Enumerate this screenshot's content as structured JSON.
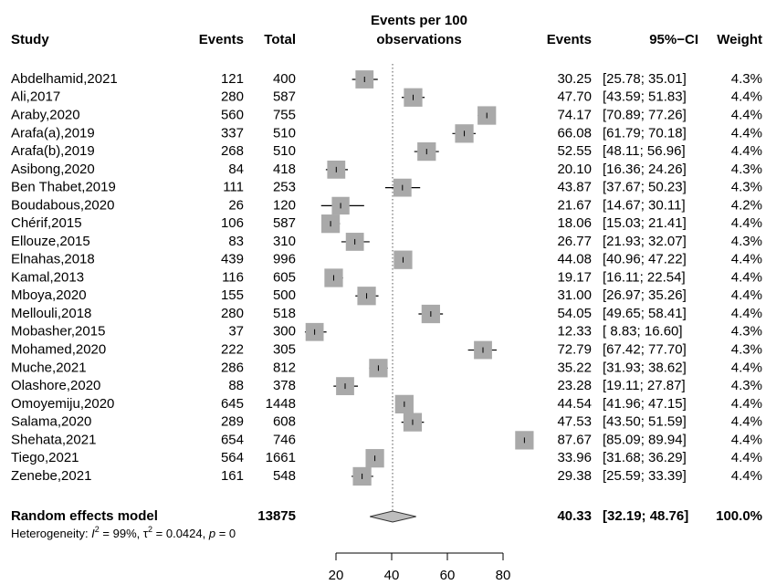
{
  "chart_data": {
    "type": "forest",
    "headers": {
      "study": "Study",
      "events": "Events",
      "total": "Total",
      "plot": [
        "Events per 100",
        "observations"
      ],
      "rate": "Events",
      "ci": "95%−CI",
      "weight": "Weight"
    },
    "categories": [
      "Abdelhamid,2021",
      "Ali,2017",
      "Araby,2020",
      "Arafa(a),2019",
      "Arafa(b),2019",
      "Asibong,2020",
      "Ben Thabet,2019",
      "Boudabous,2020",
      "Chérif,2015",
      "Ellouze,2015",
      "Elnahas,2018",
      "Kamal,2013",
      "Mboya,2020",
      "Mellouli,2018",
      "Mobasher,2015",
      "Mohamed,2020",
      "Muche,2021",
      "Olashore,2020",
      "Omoyemiju,2020",
      "Salama,2020",
      "Shehata,2021",
      "Tiego,2021",
      "Zenebe,2021"
    ],
    "events": [
      121,
      280,
      560,
      337,
      268,
      84,
      111,
      26,
      106,
      83,
      439,
      116,
      155,
      280,
      37,
      222,
      286,
      88,
      645,
      289,
      654,
      564,
      161
    ],
    "totals": [
      400,
      587,
      755,
      510,
      510,
      418,
      253,
      120,
      587,
      310,
      996,
      605,
      500,
      518,
      300,
      305,
      812,
      378,
      1448,
      608,
      746,
      1661,
      548
    ],
    "values": [
      30.25,
      47.7,
      74.17,
      66.08,
      52.55,
      20.1,
      43.87,
      21.67,
      18.06,
      26.77,
      44.08,
      19.17,
      31.0,
      54.05,
      12.33,
      72.79,
      35.22,
      23.28,
      44.54,
      47.53,
      87.67,
      33.96,
      29.38
    ],
    "value_labels": [
      "30.25",
      "47.70",
      "74.17",
      "66.08",
      "52.55",
      "20.10",
      "43.87",
      "21.67",
      "18.06",
      "26.77",
      "44.08",
      "19.17",
      "31.00",
      "54.05",
      "12.33",
      "72.79",
      "35.22",
      "23.28",
      "44.54",
      "47.53",
      "87.67",
      "33.96",
      "29.38"
    ],
    "ci": [
      [
        25.78,
        35.01
      ],
      [
        43.59,
        51.83
      ],
      [
        70.89,
        77.26
      ],
      [
        61.79,
        70.18
      ],
      [
        48.11,
        56.96
      ],
      [
        16.36,
        24.26
      ],
      [
        37.67,
        50.23
      ],
      [
        14.67,
        30.11
      ],
      [
        15.03,
        21.41
      ],
      [
        21.93,
        32.07
      ],
      [
        40.96,
        47.22
      ],
      [
        16.11,
        22.54
      ],
      [
        26.97,
        35.26
      ],
      [
        49.65,
        58.41
      ],
      [
        8.83,
        16.6
      ],
      [
        67.42,
        77.7
      ],
      [
        31.93,
        38.62
      ],
      [
        19.11,
        27.87
      ],
      [
        41.96,
        47.15
      ],
      [
        43.5,
        51.59
      ],
      [
        85.09,
        89.94
      ],
      [
        31.68,
        36.29
      ],
      [
        25.59,
        33.39
      ]
    ],
    "ci_labels": [
      "[25.78; 35.01]",
      "[43.59; 51.83]",
      "[70.89; 77.26]",
      "[61.79; 70.18]",
      "[48.11; 56.96]",
      "[16.36; 24.26]",
      "[37.67; 50.23]",
      "[14.67; 30.11]",
      "[15.03; 21.41]",
      "[21.93; 32.07]",
      "[40.96; 47.22]",
      "[16.11; 22.54]",
      "[26.97; 35.26]",
      "[49.65; 58.41]",
      "[ 8.83; 16.60]",
      "[67.42; 77.70]",
      "[31.93; 38.62]",
      "[19.11; 27.87]",
      "[41.96; 47.15]",
      "[43.50; 51.59]",
      "[85.09; 89.94]",
      "[31.68; 36.29]",
      "[25.59; 33.39]"
    ],
    "weights": [
      4.3,
      4.4,
      4.4,
      4.4,
      4.4,
      4.3,
      4.3,
      4.2,
      4.4,
      4.3,
      4.4,
      4.4,
      4.4,
      4.4,
      4.3,
      4.3,
      4.4,
      4.3,
      4.4,
      4.4,
      4.4,
      4.4,
      4.4
    ],
    "weight_labels": [
      "4.3%",
      "4.4%",
      "4.4%",
      "4.4%",
      "4.4%",
      "4.3%",
      "4.3%",
      "4.2%",
      "4.4%",
      "4.3%",
      "4.4%",
      "4.4%",
      "4.4%",
      "4.4%",
      "4.3%",
      "4.3%",
      "4.4%",
      "4.3%",
      "4.4%",
      "4.4%",
      "4.4%",
      "4.4%",
      "4.4%"
    ],
    "color": "#a9a9a9",
    "pooled": {
      "name": "Random effects model",
      "total": 13875,
      "value": 40.33,
      "value_label": "40.33",
      "ci": [
        32.19,
        48.76
      ],
      "ci_label": "[32.19; 48.76]",
      "weight": 100,
      "weight_label": "100.0%",
      "color": "#bdbdbd"
    },
    "heterogeneity": [
      "Heterogeneity: ",
      "I",
      "2",
      " = 99%, ",
      "τ",
      "2",
      " = 0.0424, ",
      "p",
      " = 0"
    ],
    "xlim": [
      20,
      80
    ],
    "xticks": [
      20,
      40,
      60,
      80
    ]
  }
}
